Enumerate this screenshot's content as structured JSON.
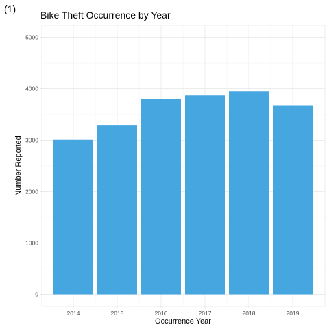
{
  "figure_tag": "(1)",
  "chart_data": {
    "type": "bar",
    "title": "Bike Theft Occurrence by Year",
    "xlabel": "Occurrence Year",
    "ylabel": "Number Reported",
    "categories": [
      "2014",
      "2015",
      "2016",
      "2017",
      "2018",
      "2019"
    ],
    "values": [
      3010,
      3285,
      3800,
      3870,
      3950,
      3680
    ],
    "ylim": [
      0,
      5000
    ],
    "yticks": [
      0,
      1000,
      2000,
      3000,
      4000,
      5000
    ],
    "grid": true,
    "bar_color": "#46A6E0"
  }
}
